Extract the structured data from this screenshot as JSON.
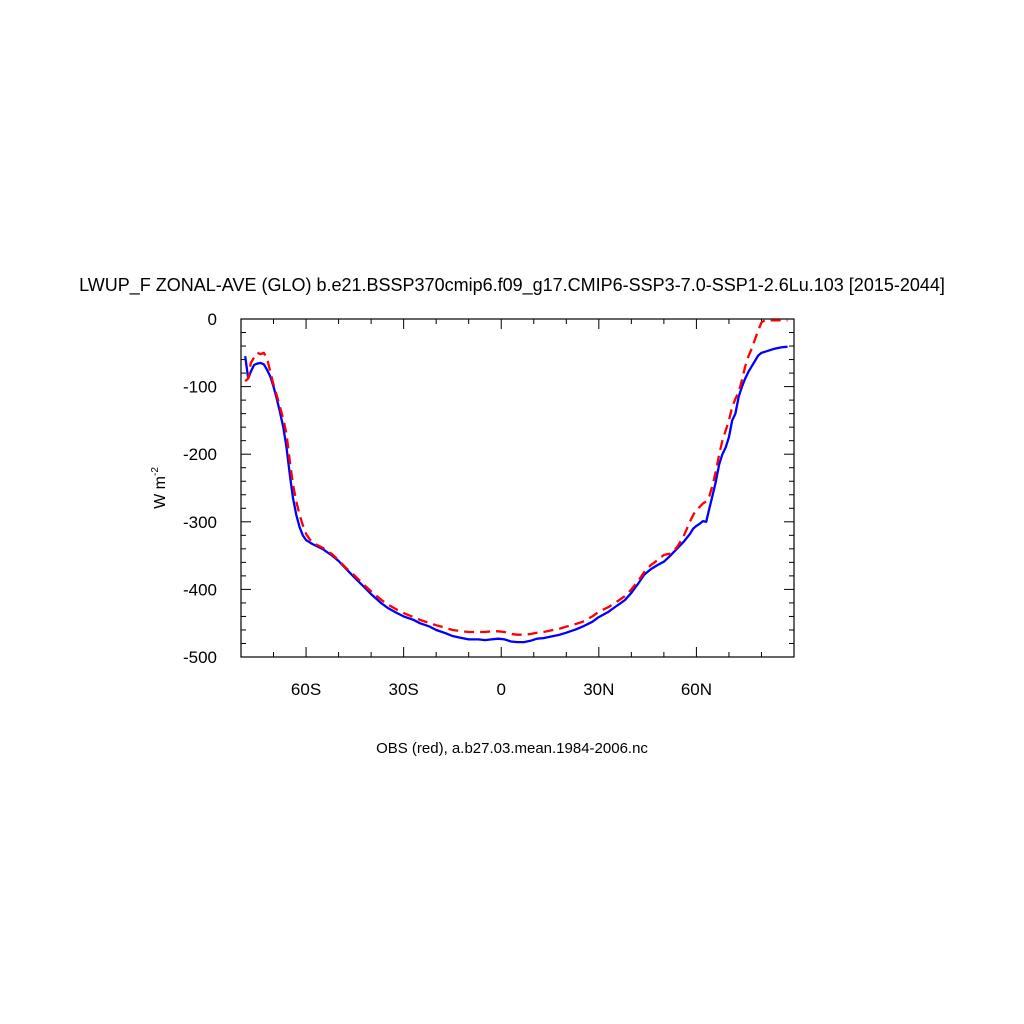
{
  "chart_data": {
    "type": "line",
    "title": "LWUP_F ZONAL-AVE (GLO) b.e21.BSSP370cmip6.f09_g17.CMIP6-SSP3-7.0-SSP1-2.6Lu.103 [2015-2044]",
    "ylabel_main": "W m",
    "ylabel_sup": "-2",
    "caption": "OBS (red), a.b27.03.mean.1984-2006.nc",
    "xlim": [
      -80,
      90
    ],
    "ylim": [
      -500,
      0
    ],
    "grid": false,
    "xticks": [
      {
        "value": -60,
        "label": "60S"
      },
      {
        "value": -30,
        "label": "30S"
      },
      {
        "value": 0,
        "label": "0"
      },
      {
        "value": 30,
        "label": "30N"
      },
      {
        "value": 60,
        "label": "60N"
      }
    ],
    "yticks": [
      {
        "value": 0,
        "label": "0"
      },
      {
        "value": -100,
        "label": "-100"
      },
      {
        "value": -200,
        "label": "-200"
      },
      {
        "value": -300,
        "label": "-300"
      },
      {
        "value": -400,
        "label": "-400"
      },
      {
        "value": -500,
        "label": "-500"
      }
    ],
    "series": [
      {
        "color": "#0000ff",
        "dash": "",
        "points": [
          [
            -78.7,
            -55
          ],
          [
            -77.8,
            -88
          ],
          [
            -77,
            -78
          ],
          [
            -76,
            -68
          ],
          [
            -75,
            -66
          ],
          [
            -74,
            -65
          ],
          [
            -73,
            -67
          ],
          [
            -72,
            -75
          ],
          [
            -71,
            -85
          ],
          [
            -70,
            -100
          ],
          [
            -69,
            -118
          ],
          [
            -68,
            -138
          ],
          [
            -67,
            -160
          ],
          [
            -66,
            -190
          ],
          [
            -65,
            -230
          ],
          [
            -64,
            -265
          ],
          [
            -63,
            -290
          ],
          [
            -62,
            -308
          ],
          [
            -61,
            -320
          ],
          [
            -60,
            -327
          ],
          [
            -58,
            -333
          ],
          [
            -55,
            -340
          ],
          [
            -52,
            -350
          ],
          [
            -50,
            -358
          ],
          [
            -48,
            -368
          ],
          [
            -45,
            -383
          ],
          [
            -42,
            -397
          ],
          [
            -40,
            -407
          ],
          [
            -37,
            -420
          ],
          [
            -35,
            -427
          ],
          [
            -32,
            -435
          ],
          [
            -30,
            -440
          ],
          [
            -27,
            -445
          ],
          [
            -25,
            -450
          ],
          [
            -22,
            -455
          ],
          [
            -20,
            -460
          ],
          [
            -17,
            -465
          ],
          [
            -15,
            -469
          ],
          [
            -12,
            -472
          ],
          [
            -10,
            -474
          ],
          [
            -7,
            -474
          ],
          [
            -5,
            -475
          ],
          [
            -3,
            -474
          ],
          [
            -1,
            -473
          ],
          [
            1,
            -474
          ],
          [
            3,
            -477
          ],
          [
            5,
            -478
          ],
          [
            7,
            -478
          ],
          [
            9,
            -476
          ],
          [
            11,
            -473
          ],
          [
            13,
            -472
          ],
          [
            15,
            -470
          ],
          [
            18,
            -467
          ],
          [
            20,
            -464
          ],
          [
            23,
            -459
          ],
          [
            25,
            -455
          ],
          [
            28,
            -448
          ],
          [
            30,
            -441
          ],
          [
            33,
            -433
          ],
          [
            35,
            -426
          ],
          [
            38,
            -416
          ],
          [
            40,
            -405
          ],
          [
            42,
            -392
          ],
          [
            44,
            -378
          ],
          [
            46,
            -370
          ],
          [
            48,
            -364
          ],
          [
            50,
            -359
          ],
          [
            52,
            -350
          ],
          [
            54,
            -340
          ],
          [
            56,
            -330
          ],
          [
            58,
            -318
          ],
          [
            59,
            -310
          ],
          [
            60,
            -306
          ],
          [
            61,
            -303
          ],
          [
            62,
            -299
          ],
          [
            63,
            -300
          ],
          [
            63.5,
            -290
          ],
          [
            64,
            -280
          ],
          [
            65,
            -260
          ],
          [
            66,
            -240
          ],
          [
            67,
            -215
          ],
          [
            68,
            -200
          ],
          [
            69,
            -190
          ],
          [
            70,
            -175
          ],
          [
            71,
            -150
          ],
          [
            72,
            -140
          ],
          [
            73,
            -115
          ],
          [
            74,
            -100
          ],
          [
            75,
            -88
          ],
          [
            76,
            -78
          ],
          [
            77,
            -70
          ],
          [
            78,
            -62
          ],
          [
            79,
            -54
          ],
          [
            80,
            -50
          ],
          [
            82,
            -47
          ],
          [
            84,
            -44
          ],
          [
            86,
            -42
          ],
          [
            88,
            -41
          ]
        ]
      },
      {
        "color": "#ff0000",
        "dash": "10,6",
        "points": [
          [
            -78.7,
            -92
          ],
          [
            -77.8,
            -88
          ],
          [
            -77,
            -65
          ],
          [
            -76,
            -57
          ],
          [
            -75,
            -50
          ],
          [
            -74,
            -52
          ],
          [
            -73,
            -50
          ],
          [
            -72,
            -58
          ],
          [
            -71,
            -78
          ],
          [
            -70,
            -97
          ],
          [
            -69,
            -113
          ],
          [
            -68,
            -130
          ],
          [
            -67,
            -148
          ],
          [
            -66,
            -170
          ],
          [
            -65,
            -210
          ],
          [
            -64,
            -245
          ],
          [
            -63,
            -270
          ],
          [
            -62,
            -290
          ],
          [
            -61,
            -305
          ],
          [
            -60,
            -318
          ],
          [
            -59,
            -325
          ],
          [
            -58,
            -331
          ],
          [
            -55,
            -338
          ],
          [
            -52,
            -348
          ],
          [
            -50,
            -357
          ],
          [
            -48,
            -367
          ],
          [
            -45,
            -380
          ],
          [
            -42,
            -394
          ],
          [
            -40,
            -403
          ],
          [
            -37,
            -415
          ],
          [
            -35,
            -422
          ],
          [
            -32,
            -430
          ],
          [
            -30,
            -435
          ],
          [
            -27,
            -441
          ],
          [
            -25,
            -445
          ],
          [
            -22,
            -450
          ],
          [
            -20,
            -453
          ],
          [
            -17,
            -457
          ],
          [
            -15,
            -460
          ],
          [
            -12,
            -462
          ],
          [
            -10,
            -463
          ],
          [
            -7,
            -463
          ],
          [
            -5,
            -463
          ],
          [
            -3,
            -462
          ],
          [
            -1,
            -462
          ],
          [
            1,
            -463
          ],
          [
            3,
            -466
          ],
          [
            5,
            -467
          ],
          [
            7,
            -467
          ],
          [
            9,
            -466
          ],
          [
            11,
            -464
          ],
          [
            13,
            -463
          ],
          [
            15,
            -461
          ],
          [
            18,
            -458
          ],
          [
            20,
            -455
          ],
          [
            23,
            -451
          ],
          [
            25,
            -448
          ],
          [
            28,
            -440
          ],
          [
            30,
            -433
          ],
          [
            33,
            -426
          ],
          [
            35,
            -420
          ],
          [
            38,
            -410
          ],
          [
            40,
            -400
          ],
          [
            42,
            -388
          ],
          [
            44,
            -374
          ],
          [
            46,
            -364
          ],
          [
            48,
            -357
          ],
          [
            50,
            -349
          ],
          [
            52,
            -347
          ],
          [
            54,
            -338
          ],
          [
            56,
            -322
          ],
          [
            58,
            -300
          ],
          [
            59,
            -290
          ],
          [
            60,
            -282
          ],
          [
            61,
            -278
          ],
          [
            62,
            -273
          ],
          [
            63,
            -270
          ],
          [
            64,
            -262
          ],
          [
            65,
            -245
          ],
          [
            66,
            -225
          ],
          [
            67,
            -200
          ],
          [
            68,
            -180
          ],
          [
            69,
            -165
          ],
          [
            70,
            -150
          ],
          [
            71,
            -130
          ],
          [
            72,
            -118
          ],
          [
            73,
            -108
          ],
          [
            74,
            -90
          ],
          [
            75,
            -70
          ],
          [
            76,
            -55
          ],
          [
            77,
            -44
          ],
          [
            78,
            -30
          ],
          [
            79,
            -17
          ],
          [
            80,
            -5
          ],
          [
            81,
            -2
          ],
          [
            82,
            -2
          ],
          [
            84,
            -2
          ],
          [
            86,
            -2
          ],
          [
            88,
            -2
          ]
        ]
      }
    ]
  }
}
